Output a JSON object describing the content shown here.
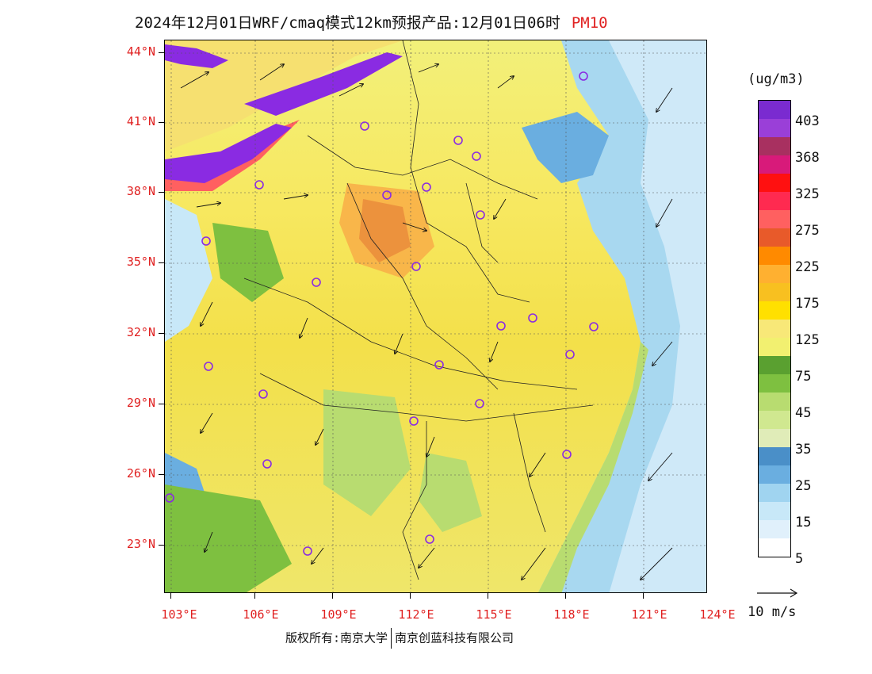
{
  "title": {
    "main": "2024年12月01日WRF/cmaq模式12km预报产品:12月01日06时",
    "variable": "PM10"
  },
  "lat_labels": [
    "44°N",
    "41°N",
    "38°N",
    "35°N",
    "32°N",
    "29°N",
    "26°N",
    "23°N"
  ],
  "lon_labels": [
    "103°E",
    "106°E",
    "109°E",
    "112°E",
    "115°E",
    "118°E",
    "121°E",
    "124°E"
  ],
  "colorbar": {
    "unit": "(ug/m3)",
    "labels": [
      "403",
      "368",
      "325",
      "275",
      "225",
      "175",
      "125",
      "75",
      "45",
      "35",
      "25",
      "15",
      "5"
    ],
    "colors": [
      "#7a2bd0",
      "#9a3fd8",
      "#a83060",
      "#d81a7a",
      "#ff1010",
      "#ff2a50",
      "#ff6060",
      "#e85a2a",
      "#ff8a00",
      "#ffb030",
      "#f8c020",
      "#ffe000",
      "#f8e878",
      "#f2f070",
      "#5aa030",
      "#7ec040",
      "#b8dc70",
      "#d0e890",
      "#e0ecb8",
      "#4a8fc8",
      "#6aaee0",
      "#a0d4f0",
      "#c8e8f8",
      "#e0f0fb",
      "#ffffff"
    ]
  },
  "wind_legend": {
    "label": "10 m/s"
  },
  "copyright": {
    "left": "版权所有:南京大学",
    "right": "南京创蓝科技有限公司"
  },
  "colors": {
    "axis_label": "#e02020",
    "station_marker": "#8a2be2"
  }
}
